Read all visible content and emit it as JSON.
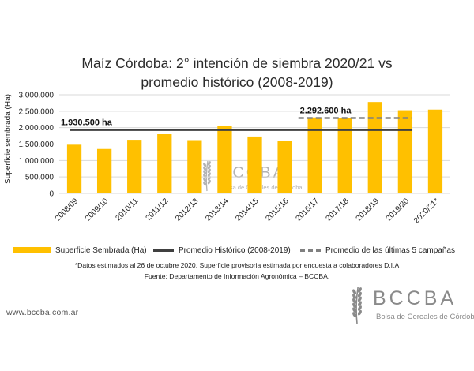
{
  "title_line1": "Maíz Córdoba: 2° intención de siembra 2020/21 vs",
  "title_line2": "promedio histórico (2008-2019)",
  "footnote1": "*Datos estimados al 26 de octubre 2020. Superficie provisoria estimada por encuesta a colaboradores D.I.A",
  "footnote2": "Fuente: Departamento de Información Agronómica – BCCBA.",
  "website": "www.bccba.com.ar",
  "logo": {
    "acronym": "BCCBA",
    "name": "Bolsa de Cereales de Córdoba"
  },
  "colors": {
    "bar": "#FFC000",
    "historic_line": "#404040",
    "recent_line": "#808080",
    "grid": "#d9d9d9",
    "logo": "#8a8a8a"
  },
  "chart_data": {
    "type": "bar",
    "ylabel": "Superficie sembrada (Ha)",
    "ylim": [
      0,
      3000000
    ],
    "yticks": [
      "0",
      "500.000",
      "1.000.000",
      "1.500.000",
      "2.000.000",
      "2.500.000",
      "3.000.000"
    ],
    "grid": true,
    "legend_position": "bottom",
    "categories": [
      "2008/09",
      "2009/10",
      "2010/11",
      "2011/12",
      "2012/13",
      "2013/14",
      "2014/15",
      "2015/16",
      "2016/17",
      "2017/18",
      "2018/19",
      "2019/20",
      "2020/21*"
    ],
    "series": [
      {
        "name": "Superficie Sembrada (Ha)",
        "values": [
          1480000,
          1350000,
          1630000,
          1800000,
          1620000,
          2050000,
          1730000,
          1600000,
          2310000,
          2300000,
          2780000,
          2530000,
          2550000
        ]
      }
    ],
    "reference_lines": [
      {
        "name": "Promedio Histórico (2008-2019)",
        "value": 1930500,
        "label": "1.930.500 ha",
        "from": "2008/09",
        "to": "2019/20",
        "style": "solid"
      },
      {
        "name": "Promedio de las últimas 5 campañas",
        "value": 2292600,
        "label": "2.292.600 ha",
        "from": "2016/17",
        "to": "2019/20",
        "style": "dashed"
      }
    ]
  }
}
